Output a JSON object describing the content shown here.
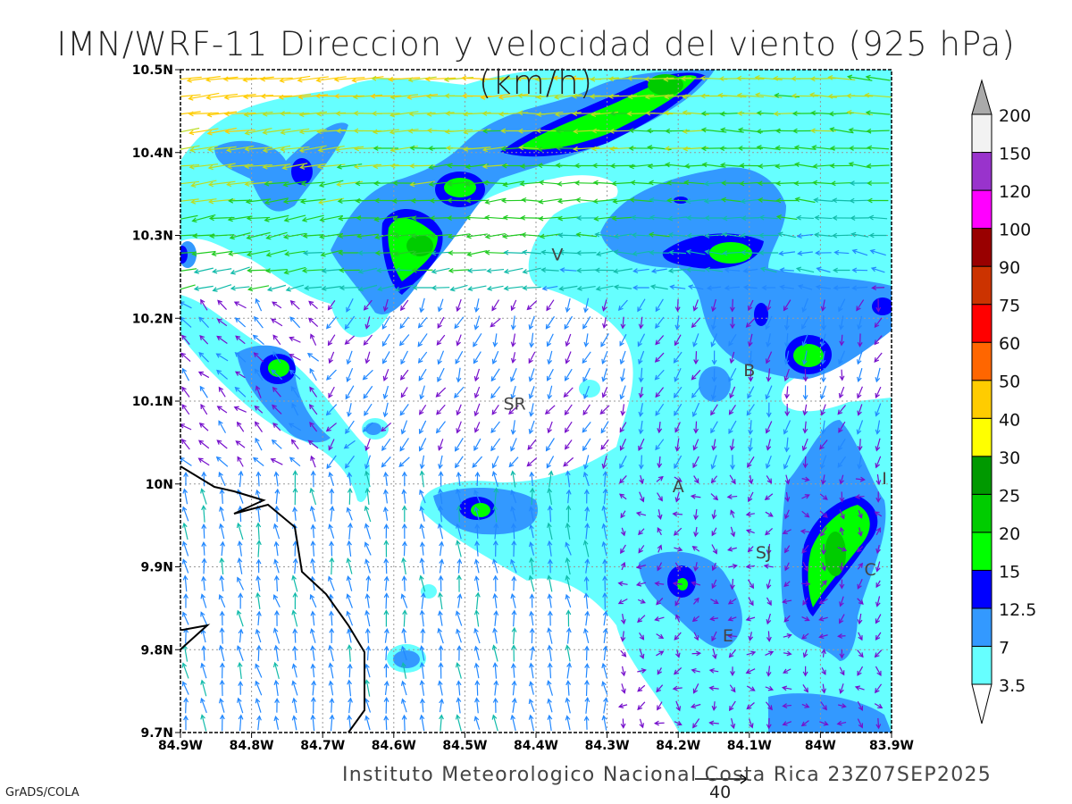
{
  "title": "IMN/WRF-11 Direccion y velocidad del viento (925 hPa)(km/h)",
  "footer": "Instituto Meteorologico Nacional Costa Rica 23Z07SEP2025",
  "credit": "GrADS/COLA",
  "reference_vector_label": "40",
  "x_ticks": [
    "84.9W",
    "84.8W",
    "84.7W",
    "84.6W",
    "84.5W",
    "84.4W",
    "84.3W",
    "84.2W",
    "84.1W",
    "84W",
    "83.9W"
  ],
  "y_ticks": [
    "10.5N",
    "10.4N",
    "10.3N",
    "10.2N",
    "10.1N",
    "10N",
    "9.9N",
    "9.8N",
    "9.7N"
  ],
  "places": [
    {
      "label": "V",
      "lon": -84.37,
      "lat": 10.27
    },
    {
      "label": "SR",
      "lon": -84.43,
      "lat": 10.09
    },
    {
      "label": "B",
      "lon": -84.1,
      "lat": 10.13
    },
    {
      "label": "A",
      "lon": -84.2,
      "lat": 9.99
    },
    {
      "label": "SJ",
      "lon": -84.08,
      "lat": 9.91
    },
    {
      "label": "C",
      "lon": -83.93,
      "lat": 9.89
    },
    {
      "label": "E",
      "lon": -84.13,
      "lat": 9.81
    },
    {
      "label": "I",
      "lon": -83.91,
      "lat": 10.0
    }
  ],
  "legend": {
    "levels": [
      "3.5",
      "7",
      "12.5",
      "15",
      "20",
      "25",
      "30",
      "40",
      "50",
      "60",
      "75",
      "90",
      "100",
      "120",
      "150",
      "200"
    ],
    "colors": [
      "#66ffff",
      "#3399ff",
      "#0000ff",
      "#00ff00",
      "#00cc00",
      "#009900",
      "#ffff00",
      "#ffcc00",
      "#ff6600",
      "#ff0000",
      "#cc3300",
      "#990000",
      "#ff00ff",
      "#9933cc",
      "#f2f2f2"
    ],
    "over_color": "#aaaaaa",
    "under_color": "#ffffff"
  }
}
